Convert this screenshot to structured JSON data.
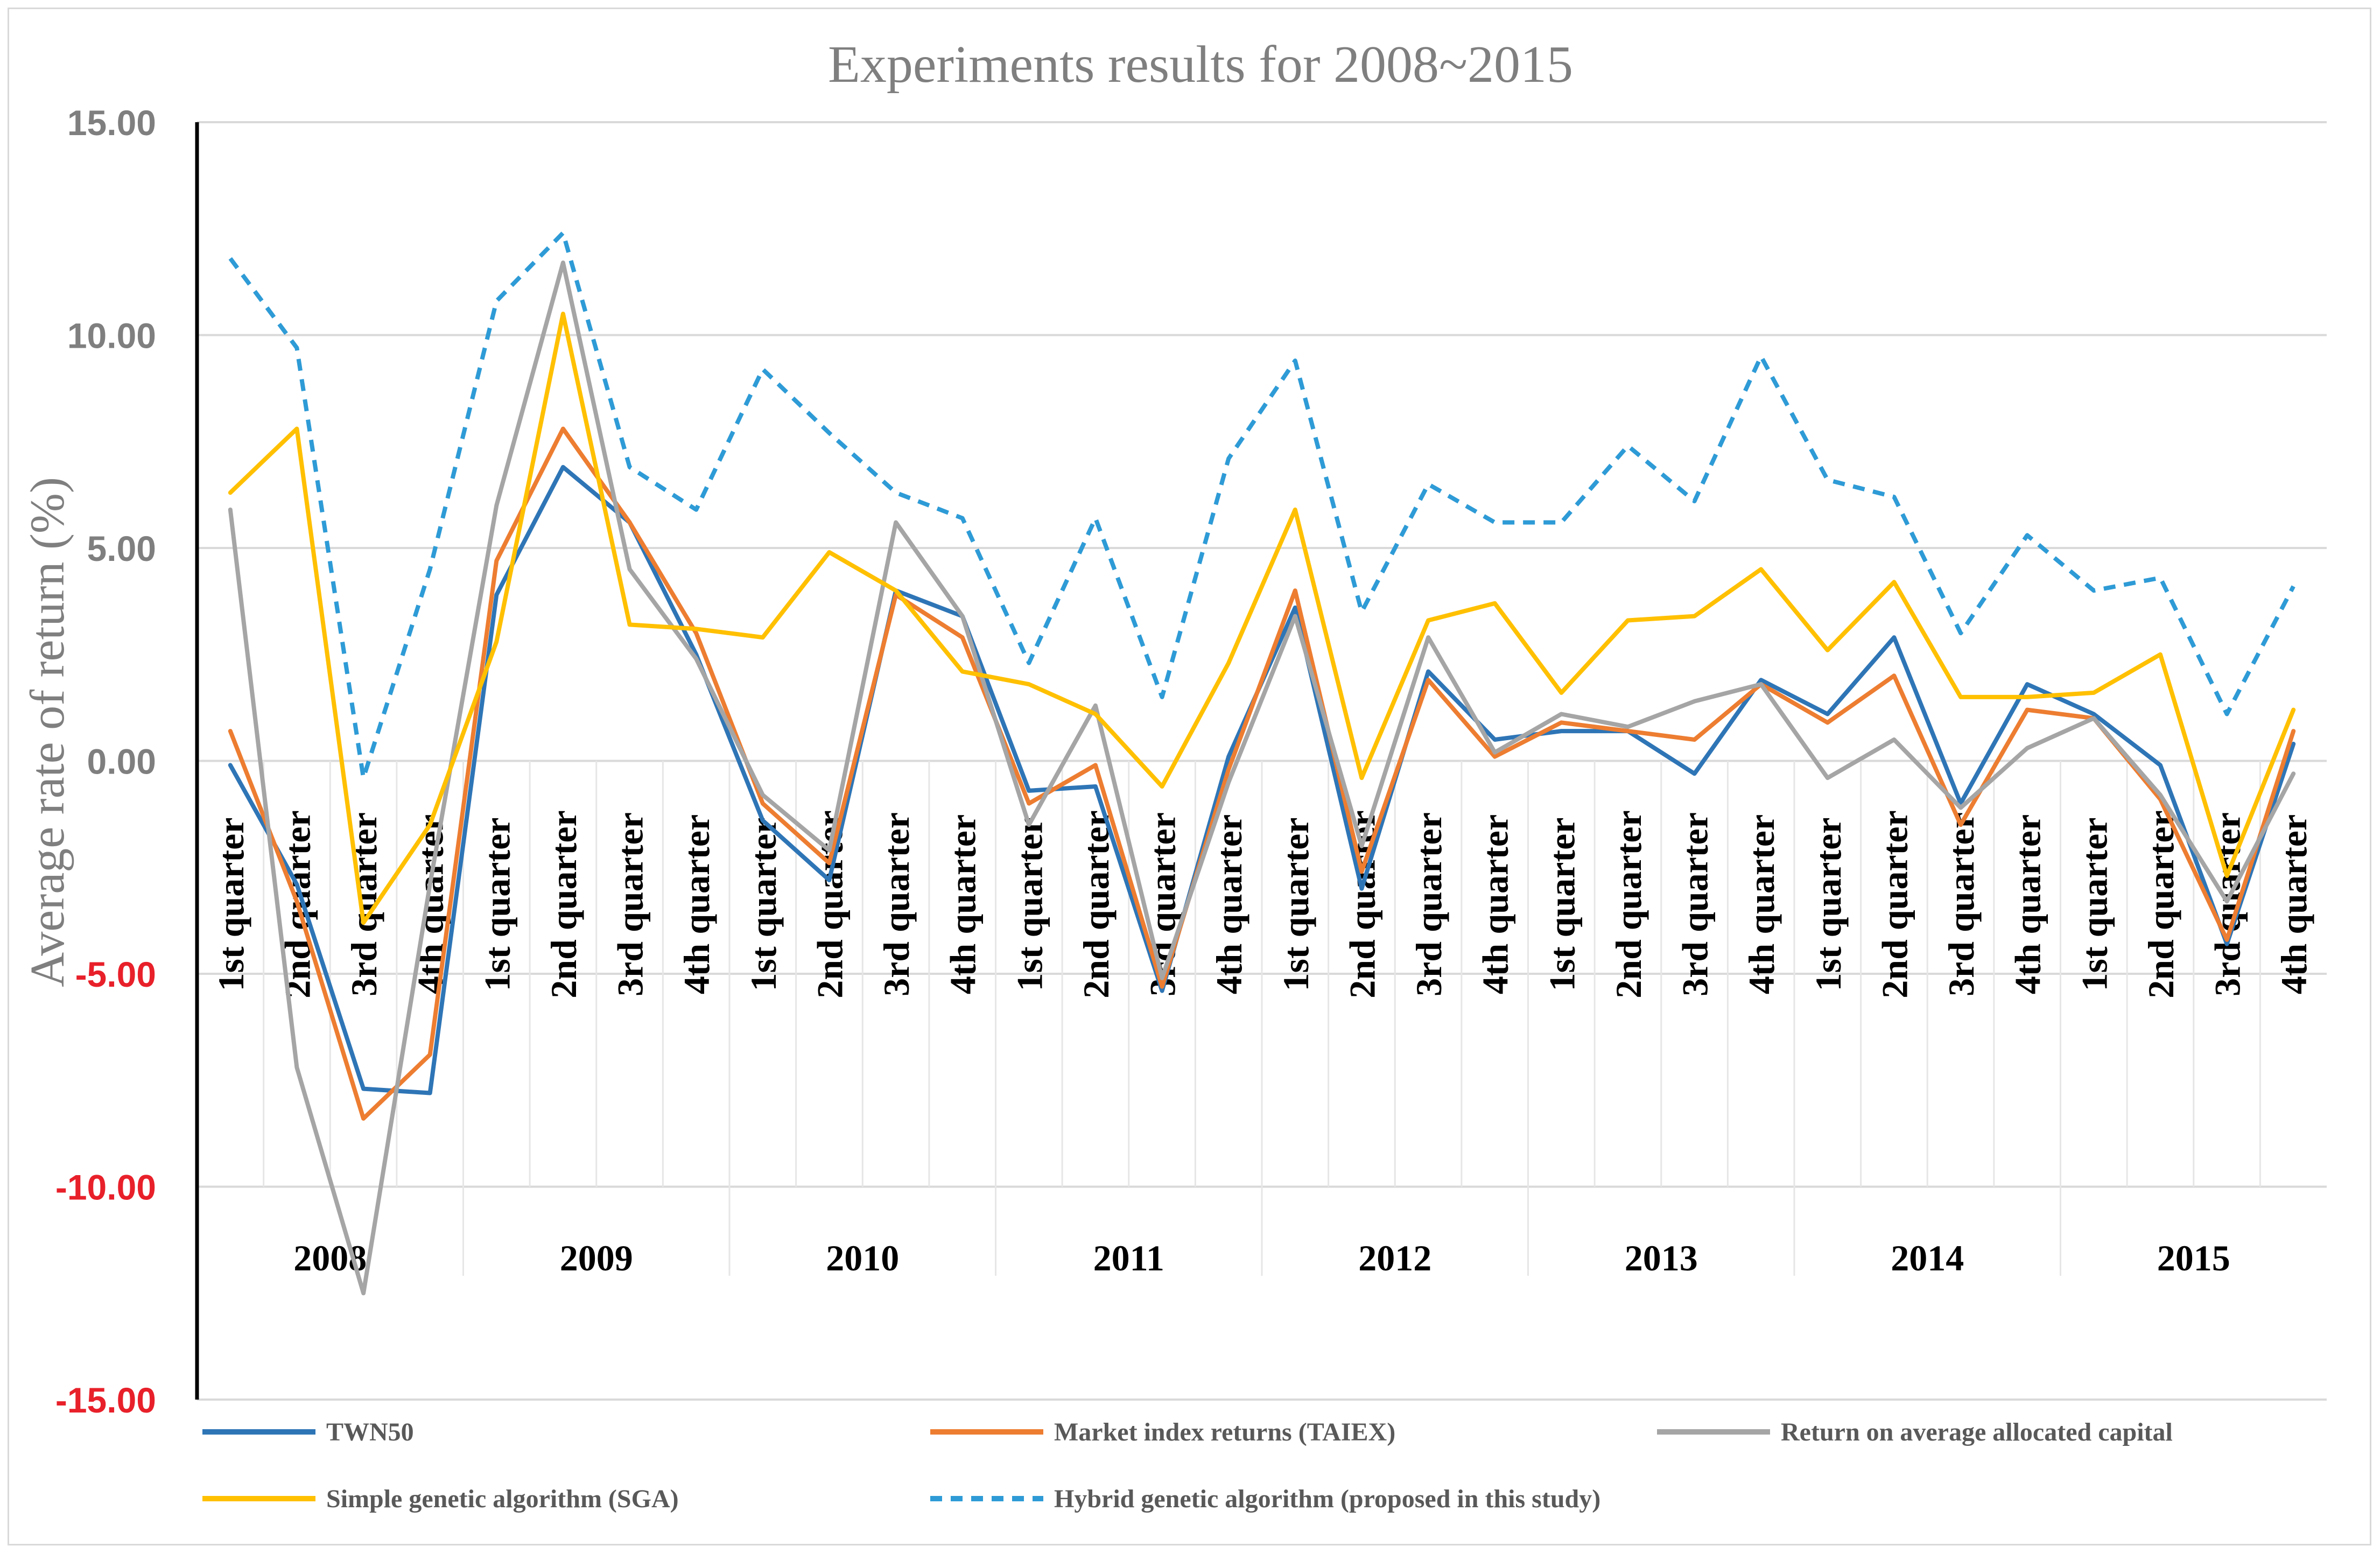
{
  "chart_data": {
    "type": "line",
    "title": "Experiments results for 2008~2015",
    "ylabel": "Average rate of return (%)",
    "xlabel": "",
    "ylim": [
      -15,
      15
    ],
    "yticks": [
      "15.00",
      "10.00",
      "5.00",
      "0.00",
      "-5.00",
      "-10.00",
      "-15.00"
    ],
    "ytick_values": [
      15,
      10,
      5,
      0,
      -5,
      -10,
      -15
    ],
    "grid": true,
    "legend_position": "bottom",
    "years": [
      "2008",
      "2009",
      "2010",
      "2011",
      "2012",
      "2013",
      "2014",
      "2015"
    ],
    "quarters": [
      "1st quarter",
      "2nd quarter",
      "3rd quarter",
      "4th quarter"
    ],
    "series": [
      {
        "name": "TWN50",
        "color": "#2e75b6",
        "dash": "solid",
        "values": [
          -0.1,
          -2.9,
          -7.7,
          -7.8,
          3.9,
          6.9,
          5.6,
          2.5,
          -1.4,
          -2.8,
          4.0,
          3.4,
          -0.7,
          -0.6,
          -5.4,
          0.1,
          3.6,
          -3.0,
          2.1,
          0.5,
          0.7,
          0.7,
          -0.3,
          1.9,
          1.1,
          2.9,
          -1.0,
          1.8,
          1.1,
          -0.1,
          -4.3,
          0.4
        ]
      },
      {
        "name": "Market index returns (TAIEX)",
        "color": "#ed7d31",
        "dash": "solid",
        "values": [
          0.7,
          -3.3,
          -8.4,
          -6.9,
          4.7,
          7.8,
          5.6,
          3.0,
          -1.0,
          -2.4,
          3.9,
          2.9,
          -1.0,
          -0.1,
          -5.3,
          -0.2,
          4.0,
          -2.6,
          1.9,
          0.1,
          0.9,
          0.7,
          0.5,
          1.8,
          0.9,
          2.0,
          -1.5,
          1.2,
          1.0,
          -0.9,
          -4.2,
          0.7
        ]
      },
      {
        "name": "Return on average allocated capital",
        "color": "#a5a5a5",
        "dash": "solid",
        "values": [
          5.9,
          -7.2,
          -12.5,
          -2.9,
          6.0,
          11.7,
          4.5,
          2.4,
          -0.8,
          -2.1,
          5.6,
          3.4,
          -1.5,
          1.3,
          -5.1,
          -0.5,
          3.4,
          -2.0,
          2.9,
          0.2,
          1.1,
          0.8,
          1.4,
          1.8,
          -0.4,
          0.5,
          -1.1,
          0.3,
          1.0,
          -0.8,
          -3.3,
          -0.3
        ]
      },
      {
        "name": "Simple genetic algorithm (SGA)",
        "color": "#ffc000",
        "dash": "solid",
        "values": [
          6.3,
          7.8,
          -3.8,
          -1.5,
          2.8,
          10.5,
          3.2,
          3.1,
          2.9,
          4.9,
          4.0,
          2.1,
          1.8,
          1.1,
          -0.6,
          2.3,
          5.9,
          -0.4,
          3.3,
          3.7,
          1.6,
          3.3,
          3.4,
          4.5,
          2.6,
          4.2,
          1.5,
          1.5,
          1.6,
          2.5,
          -2.7,
          1.2
        ]
      },
      {
        "name": "Hybrid genetic algorithm (proposed in this study)",
        "color": "#2e9bd6",
        "dash": "dashed",
        "values": [
          11.8,
          9.7,
          -0.4,
          4.5,
          10.8,
          12.4,
          6.9,
          5.9,
          9.2,
          7.7,
          6.3,
          5.7,
          2.3,
          5.7,
          1.5,
          7.1,
          9.4,
          3.5,
          6.5,
          5.6,
          5.6,
          7.4,
          6.1,
          9.5,
          6.6,
          6.2,
          3.0,
          5.3,
          4.0,
          4.3,
          1.1,
          4.1
        ]
      }
    ]
  }
}
